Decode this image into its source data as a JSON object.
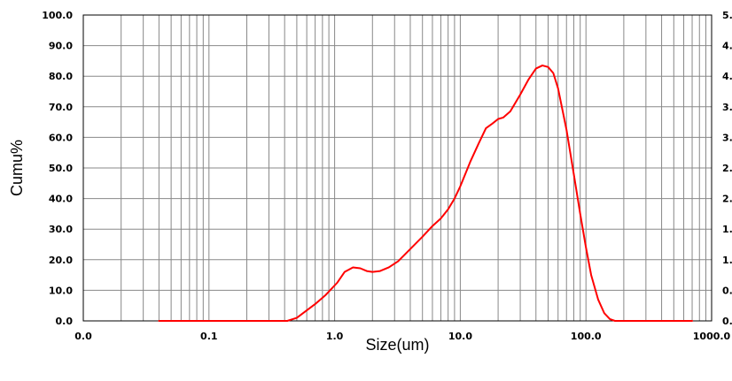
{
  "chart_data": {
    "type": "line",
    "xlabel": "Size(um)",
    "ylabel": "Cumu%",
    "xscale": "log",
    "xlim": [
      0.01,
      1000
    ],
    "ylim": [
      0,
      100
    ],
    "grid": true,
    "line_color": "#ff0000",
    "x_tick_labels": [
      "0.0",
      "0.1",
      "1.0",
      "10.0",
      "100.0",
      "1000.0"
    ],
    "x_tick_values": [
      0.01,
      0.1,
      1,
      10,
      100,
      1000
    ],
    "y_tick_labels": [
      "0.0",
      "10.0",
      "20.0",
      "30.0",
      "40.0",
      "50.0",
      "60.0",
      "70.0",
      "80.0",
      "90.0",
      "100.0"
    ],
    "y_tick_values": [
      0,
      10,
      20,
      30,
      40,
      50,
      60,
      70,
      80,
      90,
      100
    ],
    "right_tick_labels": [
      "0.",
      "0.",
      "1.",
      "1.",
      "2.",
      "2.",
      "3.",
      "3.",
      "4.",
      "4.",
      "5."
    ],
    "series": [
      {
        "x": [
          0.04,
          0.1,
          0.2,
          0.3,
          0.42,
          0.5,
          0.7,
          0.85,
          1.05,
          1.2,
          1.4,
          1.6,
          1.8,
          2.0,
          2.3,
          2.7,
          3.2,
          4.0,
          5.0,
          6.0,
          7.0,
          8.0,
          9.0,
          10.0,
          12.0,
          14.0,
          16.0,
          18.0,
          20.0,
          22.0,
          25.0,
          30.0,
          35.0,
          40.0,
          45.0,
          50.0,
          55.0,
          60.0,
          70.0,
          80.0,
          90.0,
          100.0,
          110.0,
          125.0,
          140.0,
          155.0,
          170.0,
          200.0,
          400.0,
          700.0
        ],
        "y": [
          0,
          0,
          0,
          0,
          0,
          1.0,
          5.5,
          8.5,
          12.5,
          16.0,
          17.5,
          17.2,
          16.3,
          16.0,
          16.3,
          17.5,
          19.5,
          23.5,
          27.5,
          31.0,
          33.5,
          36.5,
          40.0,
          44.0,
          52.0,
          58.0,
          63.0,
          64.5,
          66.0,
          66.5,
          68.5,
          74.0,
          79.0,
          82.5,
          83.5,
          83.0,
          81.0,
          76.0,
          62.5,
          48.0,
          35.0,
          24.0,
          15.0,
          7.0,
          2.5,
          0.6,
          0,
          0,
          0,
          0
        ]
      }
    ]
  }
}
